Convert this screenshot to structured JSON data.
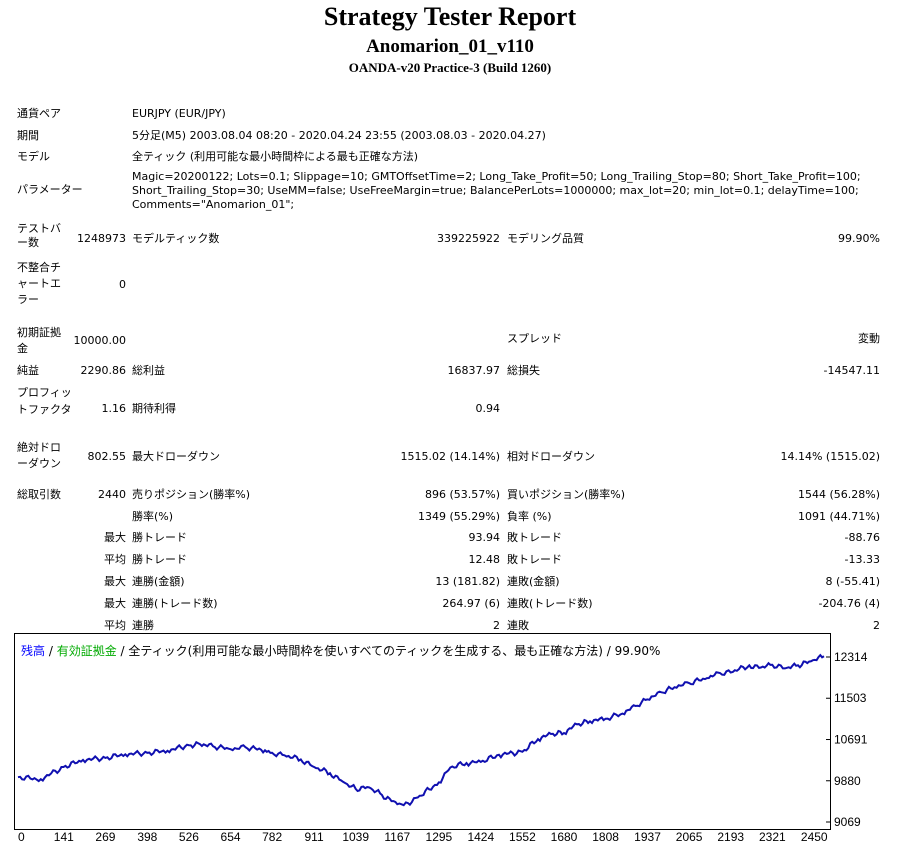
{
  "header": {
    "title": "Strategy Tester Report",
    "subtitle": "Anomarion_01_v110",
    "server": "OANDA-v20 Practice-3 (Build 1260)"
  },
  "info": {
    "pair_label": "通貨ペア",
    "pair_value": "EURJPY (EUR/JPY)",
    "period_label": "期間",
    "period_value": "5分足(M5) 2003.08.04 08:20 - 2020.04.24 23:55 (2003.08.03 - 2020.04.27)",
    "model_label": "モデル",
    "model_value": "全ティック (利用可能な最小時間枠による最も正確な方法)",
    "params_label": "パラメーター",
    "params_line1": "Magic=20200122; Lots=0.1; Slippage=10; GMTOffsetTime=2; Long_Take_Profit=50; Long_Trailing_Stop=80; Short_Take_Profit=100;",
    "params_line2": "Short_Trailing_Stop=30; UseMM=false; UseFreeMargin=true; BalancePerLots=1000000; max_lot=20; min_lot=0.1; delayTime=100;",
    "params_line3": "Comments=\"Anomarion_01\";"
  },
  "stats": {
    "bars_label": "テストバー数",
    "bars_value": "1248973",
    "ticks_label": "モデルティック数",
    "ticks_value": "339225922",
    "quality_label": "モデリング品質",
    "quality_value": "99.90%",
    "mismatch_label": "不整合チャートエラー",
    "mismatch_value": "0",
    "deposit_label": "初期証拠金",
    "deposit_value": "10000.00",
    "spread_label": "スプレッド",
    "spread_value": "変動",
    "net_label": "純益",
    "net_value": "2290.86",
    "gross_profit_label": "総利益",
    "gross_profit_value": "16837.97",
    "gross_loss_label": "総損失",
    "gross_loss_value": "-14547.11",
    "pf_label": "プロフィットファクタ",
    "pf_value": "1.16",
    "payoff_label": "期待利得",
    "payoff_value": "0.94",
    "abs_dd_label": "絶対ドローダウン",
    "abs_dd_value": "802.55",
    "max_dd_label": "最大ドローダウン",
    "max_dd_value": "1515.02 (14.14%)",
    "rel_dd_label": "相対ドローダウン",
    "rel_dd_value": "14.14% (1515.02)",
    "trades_label": "総取引数",
    "trades_value": "2440",
    "short_label": "売りポジション(勝率%)",
    "short_value": "896 (53.57%)",
    "long_label": "買いポジション(勝率%)",
    "long_value": "1544 (56.28%)",
    "win_pct_label": "勝率(%)",
    "win_pct_value": "1349 (55.29%)",
    "loss_pct_label": "負率 (%)",
    "loss_pct_value": "1091 (44.71%)",
    "max_label": "最大",
    "avg_label": "平均",
    "lwin_label": "勝トレード",
    "lwin_value": "93.94",
    "lloss_label": "敗トレード",
    "lloss_value": "-88.76",
    "awin_label": "勝トレード",
    "awin_value": "12.48",
    "aloss_label": "敗トレード",
    "aloss_value": "-13.33",
    "mcw_label": "連勝(金額)",
    "mcw_value": "13 (181.82)",
    "mcl_label": "連敗(金額)",
    "mcl_value": "8 (-55.41)",
    "mcp_label": "連勝(トレード数)",
    "mcp_value": "264.97 (6)",
    "mcls_label": "連敗(トレード数)",
    "mcls_value": "-204.76 (4)",
    "acw_label": "連勝",
    "acw_value": "2",
    "acl_label": "連敗",
    "acl_value": "2"
  },
  "chart_data": {
    "type": "line",
    "legend_balance": "残高",
    "legend_sep1": " / ",
    "legend_equity": "有効証拠金",
    "legend_sep2": " / ",
    "legend_rest": "全ティック(利用可能な最小時間枠を使いすべてのティックを生成する、最も正確な方法) / 99.90%",
    "balance_color": "#0000ff",
    "equity_color": "#00aa00",
    "line_color": "#1010b0",
    "x_ticks": [
      "0",
      "141",
      "269",
      "398",
      "526",
      "654",
      "782",
      "911",
      "1039",
      "1167",
      "1295",
      "1424",
      "1552",
      "1680",
      "1808",
      "1937",
      "2065",
      "2193",
      "2321",
      "2450"
    ],
    "y_ticks": [
      "12314",
      "11503",
      "10691",
      "9880",
      "9069"
    ],
    "xlim": [
      0,
      2480
    ],
    "ylim": [
      9069,
      12500
    ],
    "series": [
      {
        "x": [
          0,
          70,
          140,
          200,
          269,
          330,
          398,
          460,
          526,
          560,
          600,
          654,
          700,
          760,
          782,
          820,
          870,
          911,
          960,
          1000,
          1039,
          1080,
          1120,
          1167,
          1200,
          1230,
          1295,
          1330,
          1380,
          1424,
          1480,
          1552,
          1600,
          1640,
          1680,
          1720,
          1760,
          1808,
          1860,
          1900,
          1937,
          1980,
          2020,
          2065,
          2120,
          2160,
          2193,
          2250,
          2280,
          2321,
          2360,
          2400,
          2440,
          2480
        ],
        "y": [
          9950,
          9910,
          10150,
          10290,
          10330,
          10400,
          10430,
          10470,
          10580,
          10600,
          10560,
          10500,
          10540,
          10480,
          10430,
          10380,
          10300,
          10150,
          10030,
          9860,
          9720,
          9750,
          9600,
          9420,
          9440,
          9550,
          9850,
          10140,
          10230,
          10250,
          10390,
          10450,
          10700,
          10800,
          10820,
          10990,
          11050,
          11100,
          11200,
          11350,
          11480,
          11620,
          11720,
          11800,
          11900,
          12000,
          12010,
          12150,
          12100,
          12160,
          12090,
          12150,
          12230,
          12330
        ]
      }
    ]
  }
}
